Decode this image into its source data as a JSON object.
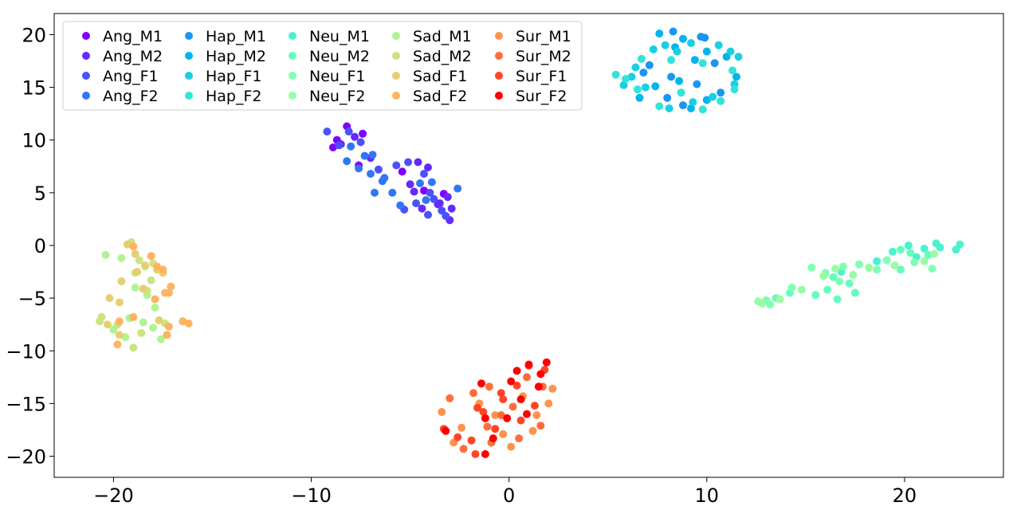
{
  "chart_data": {
    "type": "scatter",
    "title": "",
    "xlabel": "",
    "ylabel": "",
    "xlim": [
      -23,
      25
    ],
    "ylim": [
      -22,
      22
    ],
    "xticks": [
      -20,
      -10,
      0,
      10,
      20
    ],
    "xtick_labels": [
      "−20",
      "−10",
      "0",
      "10",
      "20"
    ],
    "yticks": [
      -20,
      -15,
      -10,
      -5,
      0,
      5,
      10,
      15,
      20
    ],
    "ytick_labels": [
      "−20",
      "−15",
      "−10",
      "−5",
      "0",
      "5",
      "10",
      "15",
      "20"
    ],
    "grid": false,
    "legend_position": "top-left",
    "legend_columns": 5,
    "series": [
      {
        "name": "Ang_M1",
        "color": "#8000ff",
        "points": [
          [
            -8.7,
            10.0
          ],
          [
            -8.2,
            11.3
          ],
          [
            -7.4,
            10.6
          ],
          [
            -8.9,
            9.3
          ],
          [
            -4.3,
            5.2
          ],
          [
            -5.4,
            7.0
          ],
          [
            -3.3,
            4.9
          ],
          [
            -7.6,
            7.6
          ]
        ]
      },
      {
        "name": "Ang_M2",
        "color": "#6629fe",
        "points": [
          [
            -7.8,
            10.3
          ],
          [
            -8.5,
            9.6
          ],
          [
            -7.0,
            8.3
          ],
          [
            -4.6,
            7.9
          ],
          [
            -4.1,
            7.4
          ],
          [
            -3.5,
            4.0
          ],
          [
            -3.0,
            2.4
          ],
          [
            -3.1,
            4.6
          ],
          [
            -2.9,
            3.5
          ],
          [
            -5.0,
            5.8
          ],
          [
            -4.4,
            3.5
          ],
          [
            -3.6,
            3.9
          ],
          [
            -4.8,
            5.1
          ]
        ]
      },
      {
        "name": "Ang_F1",
        "color": "#4c50fc",
        "points": [
          [
            -9.2,
            10.8
          ],
          [
            -8.6,
            9.5
          ],
          [
            -8.1,
            10.8
          ],
          [
            -7.5,
            9.8
          ],
          [
            -6.6,
            7.2
          ],
          [
            -5.7,
            7.6
          ],
          [
            -5.1,
            7.9
          ],
          [
            -4.3,
            6.8
          ],
          [
            -4.0,
            5.0
          ],
          [
            -3.8,
            4.4
          ],
          [
            -3.2,
            2.8
          ],
          [
            -4.7,
            4.0
          ],
          [
            -5.3,
            3.4
          ],
          [
            -4.1,
            2.9
          ],
          [
            -3.4,
            3.3
          ]
        ]
      },
      {
        "name": "Ang_F2",
        "color": "#3276f7",
        "points": [
          [
            -8.0,
            9.4
          ],
          [
            -7.3,
            8.5
          ],
          [
            -6.9,
            8.6
          ],
          [
            -7.6,
            7.3
          ],
          [
            -7.0,
            6.8
          ],
          [
            -6.4,
            6.1
          ],
          [
            -5.9,
            5.0
          ],
          [
            -5.5,
            3.8
          ],
          [
            -6.8,
            5.0
          ],
          [
            -4.5,
            5.9
          ],
          [
            -3.9,
            6.0
          ],
          [
            -4.2,
            4.3
          ],
          [
            -2.6,
            5.4
          ],
          [
            -6.3,
            6.4
          ],
          [
            -8.2,
            8.0
          ]
        ]
      },
      {
        "name": "Hap_M1",
        "color": "#1996f3",
        "points": [
          [
            8.3,
            20.3
          ],
          [
            9.7,
            19.8
          ],
          [
            10.4,
            17.3
          ],
          [
            9.5,
            15.3
          ],
          [
            8.0,
            14.0
          ],
          [
            8.8,
            13.3
          ],
          [
            8.2,
            16.0
          ],
          [
            7.1,
            17.1
          ],
          [
            9.9,
            19.7
          ],
          [
            10.7,
            14.5
          ],
          [
            6.8,
            16.4
          ]
        ]
      },
      {
        "name": "Hap_M2",
        "color": "#00b5eb",
        "points": [
          [
            7.6,
            20.1
          ],
          [
            8.8,
            19.6
          ],
          [
            10.0,
            18.4
          ],
          [
            11.0,
            17.9
          ],
          [
            9.4,
            17.6
          ],
          [
            8.6,
            15.6
          ],
          [
            7.4,
            15.1
          ],
          [
            9.2,
            13.0
          ],
          [
            10.0,
            13.8
          ],
          [
            8.4,
            18.8
          ],
          [
            11.5,
            16.0
          ],
          [
            6.6,
            14.0
          ]
        ]
      },
      {
        "name": "Hap_F1",
        "color": "#1acfe3",
        "points": [
          [
            7.9,
            19.0
          ],
          [
            8.5,
            18.4
          ],
          [
            9.2,
            19.2
          ],
          [
            10.6,
            19.0
          ],
          [
            11.2,
            18.4
          ],
          [
            11.6,
            17.9
          ],
          [
            11.4,
            15.3
          ],
          [
            10.3,
            14.1
          ],
          [
            9.3,
            13.6
          ],
          [
            8.1,
            13.0
          ],
          [
            6.9,
            15.0
          ],
          [
            6.2,
            16.0
          ],
          [
            5.8,
            15.2
          ],
          [
            6.4,
            16.9
          ],
          [
            7.3,
            18.6
          ]
        ]
      },
      {
        "name": "Hap_F2",
        "color": "#33e3d9",
        "points": [
          [
            5.4,
            16.2
          ],
          [
            5.9,
            15.8
          ],
          [
            6.7,
            17.7
          ],
          [
            8.2,
            17.6
          ],
          [
            9.8,
            17.3
          ],
          [
            11.3,
            16.6
          ],
          [
            11.4,
            14.8
          ],
          [
            10.7,
            13.7
          ],
          [
            9.8,
            12.9
          ],
          [
            8.7,
            14.5
          ],
          [
            7.6,
            13.2
          ],
          [
            6.5,
            14.8
          ]
        ]
      },
      {
        "name": "Neu_M1",
        "color": "#4cf2ce",
        "points": [
          [
            20.2,
            0.0
          ],
          [
            21.0,
            -0.3
          ],
          [
            21.8,
            -0.2
          ],
          [
            22.6,
            -0.4
          ],
          [
            22.8,
            0.1
          ],
          [
            21.6,
            0.2
          ],
          [
            20.6,
            -1.1
          ],
          [
            19.4,
            -0.6
          ],
          [
            18.6,
            -1.5
          ],
          [
            16.8,
            -2.5
          ]
        ]
      },
      {
        "name": "Neu_M2",
        "color": "#66fcbf",
        "points": [
          [
            19.8,
            -0.4
          ],
          [
            20.3,
            -0.7
          ],
          [
            21.2,
            -0.9
          ],
          [
            19.8,
            -2.3
          ],
          [
            17.5,
            -4.5
          ],
          [
            16.1,
            -4.2
          ],
          [
            14.2,
            -4.5
          ],
          [
            15.5,
            -4.7
          ],
          [
            16.6,
            -5.1
          ],
          [
            17.2,
            -3.6
          ],
          [
            16.4,
            -3.0
          ],
          [
            13.5,
            -5.0
          ]
        ]
      },
      {
        "name": "Neu_F1",
        "color": "#80ffb4",
        "points": [
          [
            15.3,
            -2.1
          ],
          [
            16.0,
            -2.6
          ],
          [
            16.7,
            -3.4
          ],
          [
            16.9,
            -2.0
          ],
          [
            17.7,
            -1.8
          ],
          [
            18.6,
            -2.3
          ],
          [
            19.1,
            -1.4
          ],
          [
            20.5,
            -1.6
          ],
          [
            21.4,
            -2.2
          ],
          [
            13.2,
            -5.6
          ],
          [
            14.3,
            -4.0
          ],
          [
            13.0,
            -5.2
          ]
        ]
      },
      {
        "name": "Neu_F2",
        "color": "#99fca5",
        "points": [
          [
            12.8,
            -5.5
          ],
          [
            14.8,
            -4.2
          ],
          [
            15.9,
            -2.9
          ],
          [
            16.5,
            -2.2
          ],
          [
            17.4,
            -2.8
          ],
          [
            18.2,
            -2.1
          ],
          [
            19.5,
            -1.9
          ],
          [
            21.0,
            -1.5
          ],
          [
            21.5,
            -0.8
          ],
          [
            12.6,
            -5.3
          ],
          [
            13.7,
            -5.1
          ]
        ]
      },
      {
        "name": "Sad_M1",
        "color": "#b2f296",
        "points": [
          [
            -20.4,
            -0.9
          ],
          [
            -19.6,
            -1.2
          ],
          [
            -18.4,
            -2.0
          ],
          [
            -18.9,
            -4.0
          ],
          [
            -19.2,
            -6.9
          ],
          [
            -18.5,
            -7.3
          ],
          [
            -18.0,
            -7.8
          ],
          [
            -17.6,
            -8.9
          ],
          [
            -20.0,
            -8.0
          ],
          [
            -19.4,
            -8.7
          ],
          [
            -18.3,
            -4.7
          ],
          [
            -17.9,
            -5.9
          ]
        ]
      },
      {
        "name": "Sad_M2",
        "color": "#cce383",
        "points": [
          [
            -19.1,
            0.3
          ],
          [
            -18.7,
            -1.4
          ],
          [
            -18.0,
            -1.7
          ],
          [
            -18.9,
            -2.6
          ],
          [
            -18.1,
            -3.3
          ],
          [
            -20.6,
            -6.8
          ],
          [
            -19.8,
            -7.5
          ],
          [
            -18.6,
            -8.3
          ],
          [
            -17.4,
            -7.4
          ],
          [
            -19.0,
            -9.7
          ],
          [
            -20.7,
            -7.2
          ],
          [
            -18.3,
            -4.3
          ]
        ]
      },
      {
        "name": "Sad_F1",
        "color": "#e6cf70",
        "points": [
          [
            -19.3,
            0.1
          ],
          [
            -18.9,
            -0.8
          ],
          [
            -18.4,
            -1.9
          ],
          [
            -17.8,
            -2.3
          ],
          [
            -18.8,
            -2.5
          ],
          [
            -19.6,
            -3.4
          ],
          [
            -18.5,
            -4.1
          ],
          [
            -20.2,
            -5.0
          ],
          [
            -19.7,
            -5.4
          ],
          [
            -17.5,
            -2.6
          ],
          [
            -20.3,
            -7.5
          ],
          [
            -19.7,
            -8.5
          ],
          [
            -17.7,
            -7.1
          ]
        ]
      },
      {
        "name": "Sad_F2",
        "color": "#ffb360",
        "points": [
          [
            -19.0,
            -0.1
          ],
          [
            -18.1,
            -1.0
          ],
          [
            -17.8,
            -2.0
          ],
          [
            -17.5,
            -2.3
          ],
          [
            -17.1,
            -3.9
          ],
          [
            -17.4,
            -4.5
          ],
          [
            -17.9,
            -5.1
          ],
          [
            -17.2,
            -4.5
          ],
          [
            -16.5,
            -7.2
          ],
          [
            -16.2,
            -7.4
          ],
          [
            -17.3,
            -8.5
          ],
          [
            -19.7,
            -7.2
          ],
          [
            -19.8,
            -9.4
          ],
          [
            -19.0,
            -6.8
          ],
          [
            -17.2,
            -7.7
          ]
        ]
      },
      {
        "name": "Sur_M1",
        "color": "#ff934c",
        "points": [
          [
            -3.4,
            -15.8
          ],
          [
            -2.4,
            -17.3
          ],
          [
            -1.5,
            -15.0
          ],
          [
            -0.7,
            -16.1
          ],
          [
            0.7,
            -14.3
          ],
          [
            1.4,
            -16.1
          ],
          [
            2.0,
            -15.0
          ],
          [
            -0.3,
            -17.9
          ],
          [
            1.2,
            -17.6
          ],
          [
            -2.8,
            -18.7
          ],
          [
            0.1,
            -19.1
          ],
          [
            2.2,
            -13.6
          ]
        ]
      },
      {
        "name": "Sur_M2",
        "color": "#ff6d3b",
        "points": [
          [
            -3.0,
            -14.5
          ],
          [
            -1.8,
            -14.0
          ],
          [
            -1.0,
            -13.4
          ],
          [
            0.2,
            -15.3
          ],
          [
            0.9,
            -12.5
          ],
          [
            1.7,
            -13.4
          ],
          [
            1.6,
            -17.1
          ],
          [
            0.5,
            -18.3
          ],
          [
            -0.9,
            -18.7
          ],
          [
            -2.3,
            -19.3
          ],
          [
            -1.1,
            -17.2
          ],
          [
            -0.4,
            -16.1
          ]
        ]
      },
      {
        "name": "Sur_F1",
        "color": "#ff4528",
        "points": [
          [
            -1.6,
            -15.4
          ],
          [
            -0.4,
            -14.0
          ],
          [
            0.4,
            -13.3
          ],
          [
            1.0,
            -11.4
          ],
          [
            1.8,
            -11.8
          ],
          [
            1.3,
            -15.2
          ],
          [
            -1.3,
            -15.8
          ],
          [
            -1.9,
            -18.5
          ],
          [
            -3.3,
            -17.4
          ],
          [
            -2.6,
            -18.2
          ],
          [
            -1.7,
            -19.8
          ],
          [
            -0.7,
            -17.4
          ],
          [
            0.6,
            -16.6
          ],
          [
            -0.3,
            -14.6
          ]
        ]
      },
      {
        "name": "Sur_F2",
        "color": "#ff0000",
        "points": [
          [
            -1.4,
            -13.1
          ],
          [
            0.1,
            -12.9
          ],
          [
            0.4,
            -11.9
          ],
          [
            1.0,
            -11.3
          ],
          [
            1.6,
            -12.2
          ],
          [
            1.9,
            -11.1
          ],
          [
            0.6,
            -14.6
          ],
          [
            -1.2,
            -16.4
          ],
          [
            -0.1,
            -16.4
          ],
          [
            -0.8,
            -18.3
          ],
          [
            -1.2,
            -19.8
          ],
          [
            -3.2,
            -17.6
          ],
          [
            0.9,
            -16.0
          ],
          [
            1.5,
            -13.4
          ]
        ]
      }
    ]
  }
}
